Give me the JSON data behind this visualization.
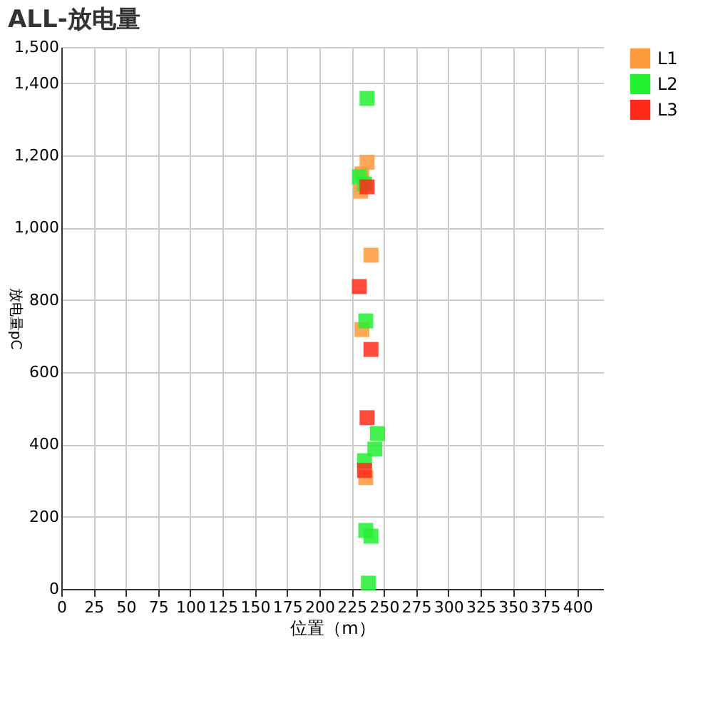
{
  "chart_data": {
    "type": "scatter",
    "title": "ALL-放电量",
    "xlabel": "位置（m）",
    "ylabel": "放电量pC",
    "xlim": [
      0,
      420
    ],
    "xticks": [
      0,
      25,
      50,
      75,
      100,
      125,
      150,
      175,
      200,
      225,
      250,
      275,
      300,
      325,
      350,
      375,
      400
    ],
    "ylim": [
      0,
      1500
    ],
    "yticks": [
      0,
      200,
      400,
      600,
      800,
      {
        "value": 1000,
        "label": "1,000"
      },
      {
        "value": 1200,
        "label": "1,200"
      },
      {
        "value": 1400,
        "label": "1,400"
      },
      {
        "value": 1500,
        "label": "1,500"
      }
    ],
    "grid": true,
    "legend": "top right",
    "marker": "square",
    "series": [
      {
        "name": "L1",
        "color": "#fd9a3c",
        "x": [
          237,
          232,
          233,
          240,
          233,
          236
        ],
        "values": [
          1181,
          1101,
          1149,
          924,
          718,
          308
        ]
      },
      {
        "name": "L2",
        "color": "#22f030",
        "x": [
          237,
          231,
          235,
          236,
          245,
          243,
          235,
          236,
          240,
          238
        ],
        "values": [
          1358,
          1141,
          1121,
          742,
          430,
          387,
          355,
          162,
          146,
          16
        ]
      },
      {
        "name": "L3",
        "color": "#ff2a1a",
        "x": [
          237,
          231,
          240,
          237,
          235
        ],
        "values": [
          1113,
          837,
          663,
          474,
          328
        ]
      }
    ]
  }
}
